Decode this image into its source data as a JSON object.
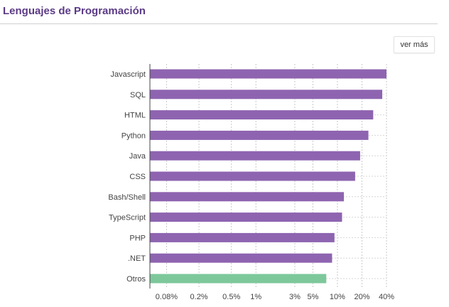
{
  "header": {
    "title": "Lenguajes de Programación"
  },
  "toolbar": {
    "more_label": "ver más"
  },
  "colors": {
    "accent": "#5b3a86",
    "bar": "#8e64b0",
    "highlight": "#7dc89b"
  },
  "chart_data": {
    "type": "bar",
    "orientation": "horizontal",
    "x_scale": "log",
    "categories": [
      "Javascript",
      "SQL",
      "HTML",
      "Python",
      "Java",
      "CSS",
      "Bash/Shell",
      "TypeScript",
      "PHP",
      ".NET",
      "Otros"
    ],
    "values": [
      40,
      35.5,
      27.5,
      24,
      19,
      16.5,
      12,
      11.4,
      9.2,
      8.6,
      7.3
    ],
    "highlight": [
      "Otros"
    ],
    "xticks": [
      {
        "value": 0.08,
        "label": "0.08%"
      },
      {
        "value": 0.2,
        "label": "0.2%"
      },
      {
        "value": 0.5,
        "label": "0.5%"
      },
      {
        "value": 1,
        "label": "1%"
      },
      {
        "value": 3,
        "label": "3%"
      },
      {
        "value": 5,
        "label": "5%"
      },
      {
        "value": 10,
        "label": "10%"
      },
      {
        "value": 20,
        "label": "20%"
      },
      {
        "value": 40,
        "label": "40%"
      }
    ],
    "xlim": [
      0.05,
      40
    ],
    "grid": true
  }
}
